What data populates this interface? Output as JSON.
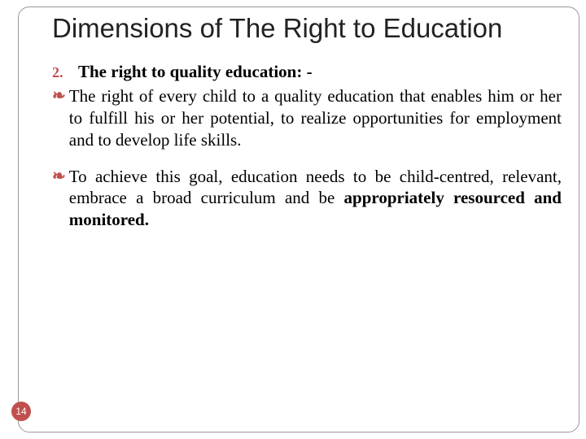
{
  "slide": {
    "title": "Dimensions of The Right to Education",
    "pageNumber": "14",
    "item": {
      "number": "2.",
      "heading": "The right to quality education: -"
    },
    "bullets": [
      {
        "glyph": "❧",
        "text_pre": "The right of every child to a quality education that enables him or her to fulfill his or her potential, to realize opportunities for employment and to develop life skills.",
        "text_bold": "",
        "text_post": ""
      },
      {
        "glyph": "❧",
        "text_pre": "To achieve this goal, education needs to be child-centred, relevant, embrace a broad curriculum and be ",
        "text_bold": "appropriately resourced and monitored.",
        "text_post": ""
      }
    ],
    "colors": {
      "accent": "#c0504d",
      "text": "#000000",
      "border": "#999999",
      "background": "#ffffff"
    },
    "fonts": {
      "title_family": "Arial",
      "title_size_pt": 25,
      "body_family": "Georgia",
      "body_size_pt": 16
    }
  }
}
